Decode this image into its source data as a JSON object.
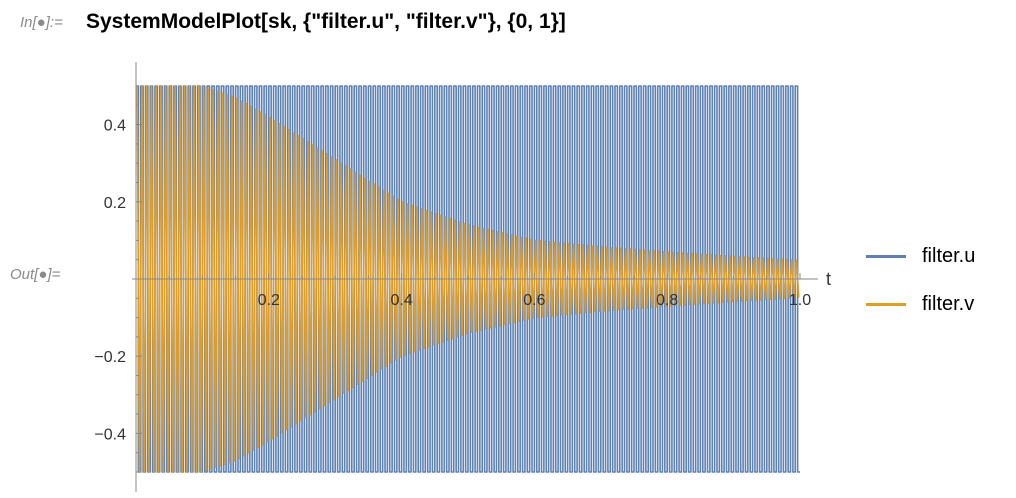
{
  "notebook": {
    "input_label": "In[●]:=",
    "output_label": "Out[●]=",
    "input_code": "SystemModelPlot[sk, {\"filter.u\", \"filter.v\"}, {0, 1}]"
  },
  "colors": {
    "series_u": "#5E81B5",
    "series_v": "#E19C24",
    "axis": "#888888"
  },
  "chart_data": {
    "type": "line",
    "xlabel": "t",
    "ylabel": "",
    "xlim": [
      0,
      1
    ],
    "ylim": [
      -0.5,
      0.5
    ],
    "x_ticks": [
      0.2,
      0.4,
      0.6,
      0.8,
      1.0
    ],
    "x_tick_labels": [
      "0.2",
      "0.4",
      "0.6",
      "0.8",
      "1.0"
    ],
    "y_ticks": [
      -0.4,
      -0.2,
      0.2,
      0.4
    ],
    "y_tick_labels": [
      "−0.4",
      "−0.2",
      "0.2",
      "0.4"
    ],
    "legend_position": "right",
    "series": [
      {
        "name": "filter.u",
        "description": "high-frequency square-like oscillation with constant amplitude",
        "amplitude": 0.5,
        "cycles_in_range": 140,
        "x": [
          0,
          1
        ],
        "y_envelope": [
          0.5,
          0.5
        ]
      },
      {
        "name": "filter.v",
        "description": "high-frequency oscillation with decaying envelope",
        "cycles_in_range": 140,
        "x": [
          0,
          0.1,
          0.15,
          0.2,
          0.3,
          0.4,
          0.5,
          0.6,
          0.7,
          0.8,
          0.9,
          1.0
        ],
        "y_envelope": [
          0.5,
          0.5,
          0.47,
          0.42,
          0.31,
          0.2,
          0.14,
          0.1,
          0.083,
          0.07,
          0.058,
          0.048
        ]
      }
    ]
  }
}
